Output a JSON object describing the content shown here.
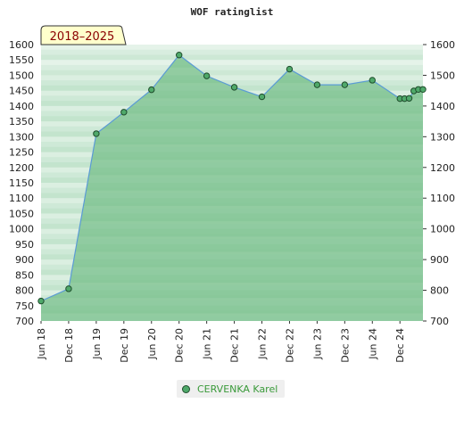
{
  "chart_data": {
    "type": "area",
    "title": "WOF ratinglist",
    "period_label": "2018–2025",
    "ylim": [
      700,
      1600
    ],
    "yticks": [
      700,
      750,
      800,
      850,
      900,
      950,
      1000,
      1050,
      1100,
      1150,
      1200,
      1250,
      1300,
      1350,
      1400,
      1450,
      1500,
      1550,
      1600
    ],
    "yticks_right": [
      700,
      800,
      900,
      1000,
      1100,
      1200,
      1300,
      1400,
      1500,
      1600
    ],
    "xtick_labels": [
      "Jun 18",
      "Dec 18",
      "Jun 19",
      "Dec 19",
      "Jun 20",
      "Dec 20",
      "Jun 21",
      "Dec 21",
      "Jun 22",
      "Dec 22",
      "Jun 23",
      "Dec 23",
      "Jun 24",
      "Dec 24"
    ],
    "grid": "horizontal bands",
    "legend_position": "bottom",
    "series": [
      {
        "name": "CERVENKA Karel",
        "color": "#4fa96a",
        "points": [
          {
            "x": "Jun 18",
            "y": 765
          },
          {
            "x": "Dec 18",
            "y": 805
          },
          {
            "x": "Jun 19",
            "y": 1310
          },
          {
            "x": "Dec 19",
            "y": 1380
          },
          {
            "x": "Jun 20",
            "y": 1453
          },
          {
            "x": "Dec 20",
            "y": 1566
          },
          {
            "x": "Jun 21",
            "y": 1498
          },
          {
            "x": "Dec 21",
            "y": 1461
          },
          {
            "x": "Jun 22",
            "y": 1430
          },
          {
            "x": "Dec 22",
            "y": 1520
          },
          {
            "x": "Jun 23",
            "y": 1469
          },
          {
            "x": "Dec 23",
            "y": 1469
          },
          {
            "x": "Jun 24",
            "y": 1484
          },
          {
            "x": "Dec 24",
            "y": 1424
          },
          {
            "x": "Jan 25",
            "y": 1424
          },
          {
            "x": "Feb 25",
            "y": 1425
          },
          {
            "x": "Mar 25",
            "y": 1449
          },
          {
            "x": "Apr 25",
            "y": 1454
          },
          {
            "x": "May 25",
            "y": 1454
          }
        ]
      }
    ]
  }
}
